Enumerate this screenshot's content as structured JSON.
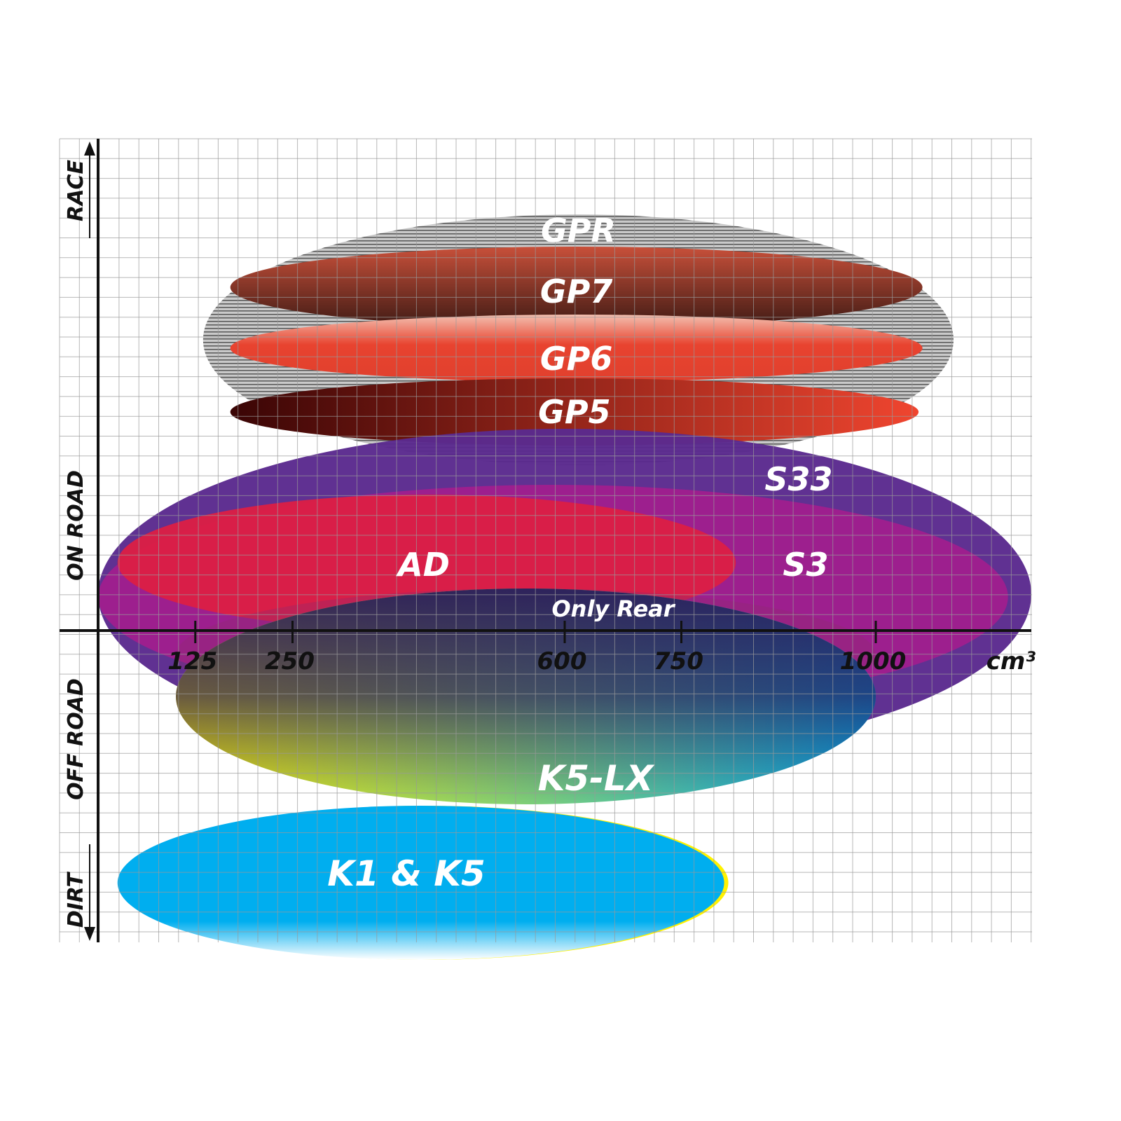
{
  "chart_data": {
    "type": "range-map",
    "x_axis": {
      "unit": "cm³",
      "ticks": [
        125,
        250,
        600,
        750,
        1000
      ]
    },
    "y_axis": {
      "categories": [
        "RACE",
        "ON ROAD",
        "OFF ROAD",
        "DIRT"
      ]
    },
    "products": [
      {
        "label": "GPR",
        "cc_range": [
          135,
          1100
        ],
        "segment": "RACE",
        "color": "#9a9a9a"
      },
      {
        "label": "GP7",
        "cc_range": [
          170,
          1060
        ],
        "segment": "RACE",
        "color": "#8a3a2a"
      },
      {
        "label": "GP6",
        "cc_range": [
          170,
          1060
        ],
        "segment": "RACE",
        "color": "#e8432f"
      },
      {
        "label": "GP5",
        "cc_range": [
          170,
          1055
        ],
        "segment": "RACE",
        "color": "#7a1010"
      },
      {
        "label": "S33",
        "cc_range": [
          0,
          1200
        ],
        "segment": "ON ROAD",
        "color": "#5b2a8e"
      },
      {
        "label": "S3",
        "cc_range": [
          0,
          1170
        ],
        "segment": "ON ROAD",
        "color": "#a01f8e"
      },
      {
        "label": "AD",
        "cc_range": [
          25,
          820
        ],
        "segment": "ON ROAD",
        "color": "#dc1f45"
      },
      {
        "label": "Only Rear",
        "cc_range": [
          100,
          1000
        ],
        "segment": "ON ROAD / OFF ROAD",
        "color": "#8e2a70"
      },
      {
        "label": "K5-LX",
        "cc_range": [
          100,
          1000
        ],
        "segment": "OFF ROAD",
        "color_start": "#fff200",
        "color_end": "#00aeef"
      },
      {
        "label": "K1 & K5",
        "cc_range": [
          25,
          805
        ],
        "segment": "DIRT",
        "color": "#00aeef"
      }
    ],
    "grid": true
  }
}
